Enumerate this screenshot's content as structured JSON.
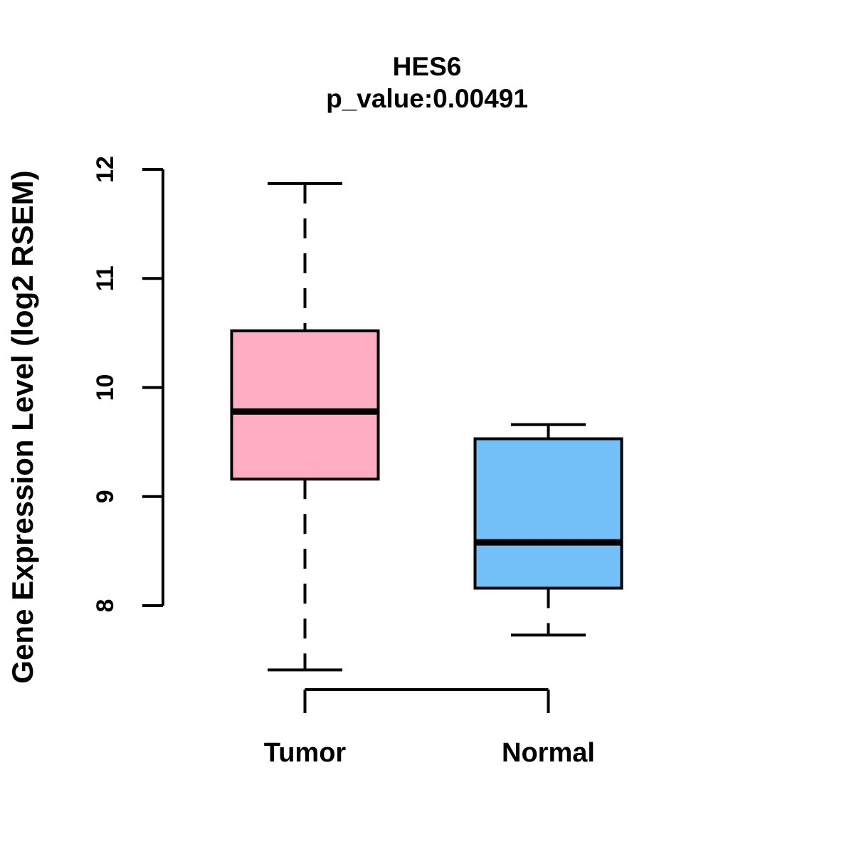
{
  "chart_data": {
    "type": "boxplot",
    "title": "HES6",
    "subtitle": "p_value:0.00491",
    "gene": "HES6",
    "p_value": 0.00491,
    "ylabel": "Gene Expression Level (log2 RSEM)",
    "categories": [
      "Tumor",
      "Normal"
    ],
    "yticks": [
      8,
      9,
      10,
      11,
      12
    ],
    "axis_range": [
      8,
      12
    ],
    "ylim": [
      7.2,
      12.15
    ],
    "grid": "off",
    "legend": "none",
    "series": [
      {
        "name": "Tumor",
        "fill_color": "#FFADC2",
        "stroke_color": "#000000",
        "whisker_low": 7.41,
        "q1": 9.16,
        "median": 9.78,
        "q3": 10.52,
        "whisker_high": 11.87
      },
      {
        "name": "Normal",
        "fill_color": "#73BFF8",
        "stroke_color": "#000000",
        "whisker_low": 7.73,
        "q1": 8.16,
        "median": 8.58,
        "q3": 9.53,
        "whisker_high": 9.66
      }
    ]
  }
}
